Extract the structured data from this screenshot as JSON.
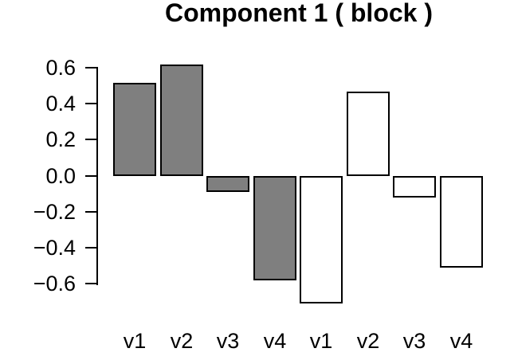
{
  "chart_data": {
    "type": "bar",
    "title": "Component 1 ( block )",
    "categories": [
      "v1",
      "v2",
      "v3",
      "v4",
      "v1",
      "v2",
      "v3",
      "v4"
    ],
    "values": [
      0.52,
      0.62,
      -0.09,
      -0.58,
      -0.71,
      0.47,
      -0.12,
      -0.51
    ],
    "bar_fills": [
      "#7f7f7f",
      "#7f7f7f",
      "#7f7f7f",
      "#7f7f7f",
      "#ffffff",
      "#ffffff",
      "#ffffff",
      "#ffffff"
    ],
    "bar_border_color": "#000000",
    "xlabel": "",
    "ylabel": "",
    "ylim": [
      -0.6,
      0.6
    ],
    "yticks": [
      0.6,
      0.4,
      0.2,
      0.0,
      -0.2,
      -0.4,
      -0.6
    ],
    "ytick_labels": [
      "0.6",
      "0.4",
      "0.2",
      "0.0",
      "−0.2",
      "−0.4",
      "−0.6"
    ],
    "grid": false,
    "legend": null,
    "axis_color": "#000000",
    "background_color": "#ffffff"
  }
}
